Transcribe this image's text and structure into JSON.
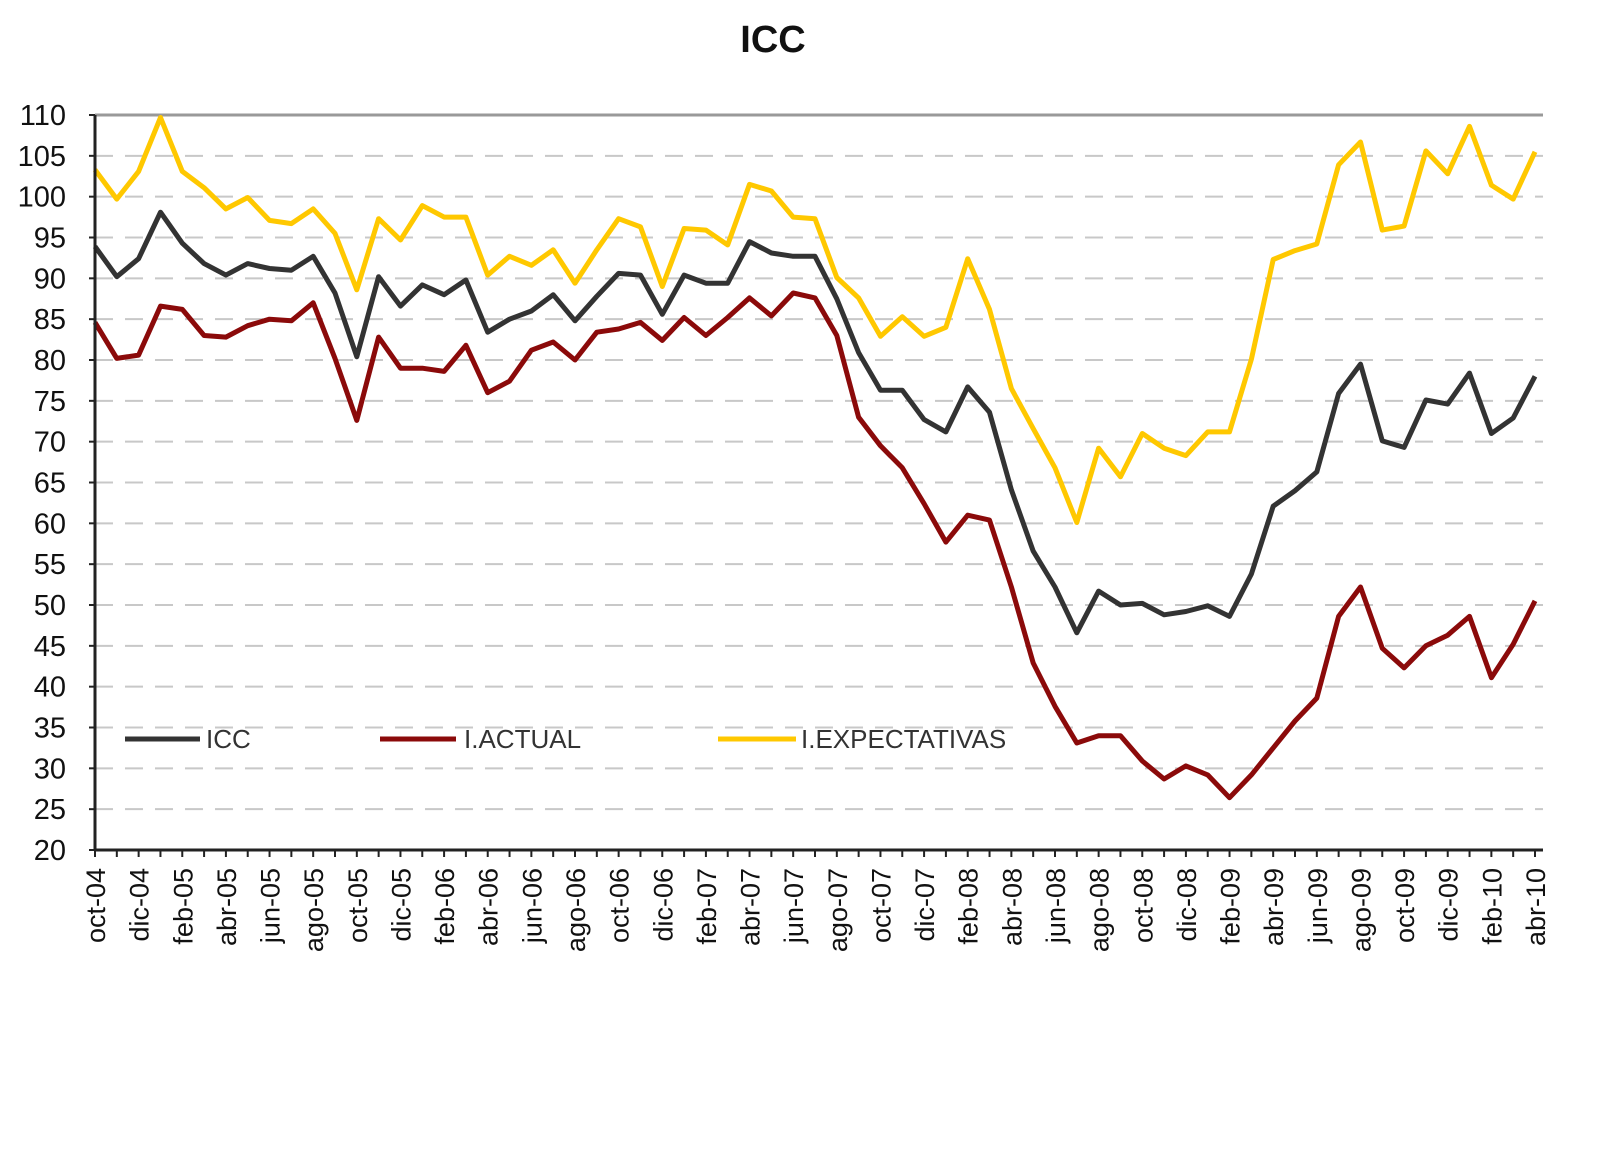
{
  "chart_data": {
    "type": "line",
    "title": "ICC",
    "xlabel": "",
    "ylabel": "",
    "ylim": [
      20,
      110
    ],
    "ytick_step": 5,
    "grid": "horizontal dashed",
    "legend_position": "bottom-left inside",
    "frequency": "monthly, oct-04 to abr-10",
    "tick_labels": [
      "oct-04",
      "dic-04",
      "feb-05",
      "abr-05",
      "jun-05",
      "ago-05",
      "oct-05",
      "dic-05",
      "feb-06",
      "abr-06",
      "jun-06",
      "ago-06",
      "oct-06",
      "dic-06",
      "feb-07",
      "abr-07",
      "jun-07",
      "ago-07",
      "oct-07",
      "dic-07",
      "feb-08",
      "abr-08",
      "jun-08",
      "ago-08",
      "oct-08",
      "dic-08",
      "feb-09",
      "abr-09",
      "jun-09",
      "ago-09",
      "oct-09",
      "dic-09",
      "feb-10",
      "abr-10"
    ],
    "series": [
      {
        "name": "ICC",
        "color": "#333333",
        "values": [
          93.9,
          90.2,
          92.4,
          98.1,
          94.3,
          91.8,
          90.4,
          91.8,
          91.2,
          91,
          92.7,
          88.2,
          80.4,
          90.2,
          86.6,
          89.2,
          88,
          89.8,
          83.4,
          85,
          86,
          88,
          84.8,
          87.8,
          90.6,
          90.4,
          85.6,
          90.4,
          89.4,
          89.4,
          94.5,
          93.1,
          92.7,
          92.7,
          87.5,
          80.9,
          76.3,
          76.3,
          72.7,
          71.2,
          76.7,
          73.6,
          64.1,
          56.6,
          52.2,
          46.6,
          51.7,
          50,
          50.2,
          48.8,
          49.2,
          49.9,
          48.6,
          53.8,
          62.1,
          64,
          66.3,
          75.9,
          79.5,
          70.1,
          69.3,
          75.1,
          74.6,
          78.4,
          71,
          72.9,
          78
        ]
      },
      {
        "name": "I.ACTUAL",
        "color": "#8b0a0a",
        "values": [
          84.6,
          80.2,
          80.6,
          86.6,
          86.2,
          83,
          82.8,
          84.2,
          85,
          84.8,
          87,
          80.2,
          72.6,
          82.8,
          79,
          79,
          78.6,
          81.8,
          76,
          77.4,
          81.2,
          82.2,
          80,
          83.4,
          83.8,
          84.6,
          82.4,
          85.2,
          83,
          85.2,
          87.6,
          85.4,
          88.2,
          87.6,
          83,
          73,
          69.5,
          66.8,
          62.4,
          57.7,
          61,
          60.4,
          52.2,
          42.9,
          37.6,
          33.1,
          34,
          34,
          30.9,
          28.7,
          30.3,
          29.2,
          26.4,
          29.2,
          32.5,
          35.8,
          38.6,
          48.6,
          52.2,
          44.7,
          42.3,
          45,
          46.3,
          48.6,
          41.1,
          45.2,
          50.5
        ]
      },
      {
        "name": "I.EXPECTATIVAS",
        "color": "#ffc800",
        "values": [
          103.3,
          99.7,
          103.1,
          109.7,
          103.1,
          101.1,
          98.5,
          99.9,
          97.1,
          96.7,
          98.5,
          95.5,
          88.6,
          97.3,
          94.7,
          98.9,
          97.5,
          97.5,
          90.4,
          92.7,
          91.6,
          93.5,
          89.4,
          93.5,
          97.3,
          96.3,
          89,
          96.1,
          95.9,
          94.1,
          101.5,
          100.7,
          97.5,
          97.3,
          90.1,
          87.6,
          82.9,
          85.3,
          82.9,
          84,
          92.4,
          86.2,
          76.5,
          71.6,
          66.8,
          60.1,
          69.2,
          65.7,
          71,
          69.2,
          68.3,
          71.2,
          71.2,
          80.1,
          92.3,
          93.4,
          94.2,
          103.9,
          106.7,
          95.9,
          96.4,
          105.6,
          102.8,
          108.6,
          101.4,
          99.7,
          105.5
        ]
      }
    ]
  }
}
